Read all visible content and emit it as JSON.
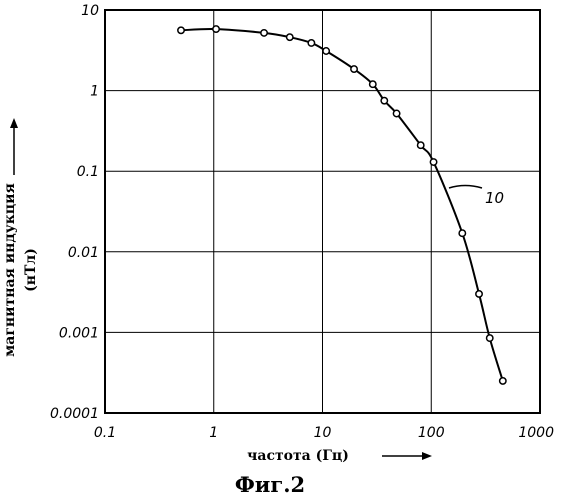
{
  "chart_data": {
    "type": "line",
    "scale": {
      "x": "log",
      "y": "log"
    },
    "xlim": [
      0.1,
      1000
    ],
    "ylim": [
      0.0001,
      10
    ],
    "grid": true,
    "x_tick_labels": [
      "0.1",
      "1",
      "10",
      "100",
      "1000"
    ],
    "y_tick_labels": [
      "0.0001",
      "0.001",
      "0.01",
      "0.1",
      "1",
      "10"
    ],
    "xlabel": "частота (Гц)",
    "ylabel_line1": "магнитная индукция",
    "ylabel_line2": "(нТл)",
    "figure_label": "Фиг.2",
    "curve_label": "10",
    "series": [
      {
        "x": [
          0.5,
          1.05,
          2.9,
          5.0,
          7.9,
          10.8,
          19.5,
          29.0,
          37.0,
          48.0,
          80.0,
          105.0,
          193.0,
          275.0,
          345.0,
          455.0
        ],
        "y": [
          5.6,
          5.8,
          5.2,
          4.6,
          3.9,
          3.1,
          1.85,
          1.2,
          0.75,
          0.52,
          0.21,
          0.13,
          0.017,
          0.003,
          0.00085,
          0.00025
        ]
      }
    ]
  }
}
